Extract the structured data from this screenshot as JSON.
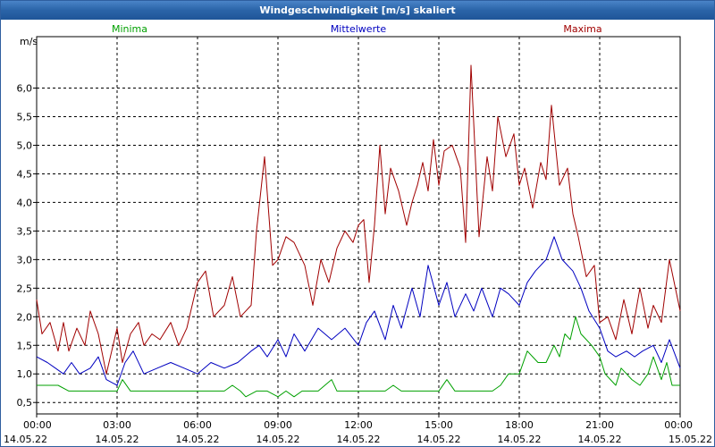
{
  "title": "Windgeschwindigkeit [m/s] skaliert",
  "chart_data": {
    "type": "line",
    "title": "Windgeschwindigkeit [m/s] skaliert",
    "ylabel": "m/s",
    "ylim": [
      0.3,
      6.9
    ],
    "yticks": [
      0.5,
      1.0,
      1.5,
      2.0,
      2.5,
      3.0,
      3.5,
      4.0,
      4.5,
      5.0,
      5.5,
      6.0
    ],
    "ytick_labels": [
      "0,5",
      "1,0",
      "1,5",
      "2,0",
      "2,5",
      "3,0",
      "3,5",
      "4,0",
      "4,5",
      "5,0",
      "5,5",
      "6,0"
    ],
    "xlim_hours": [
      0,
      24
    ],
    "xticks": [
      {
        "h": 0,
        "time": "00:00",
        "date": "14.05.22"
      },
      {
        "h": 3,
        "time": "03:00",
        "date": "14.05.22"
      },
      {
        "h": 6,
        "time": "06:00",
        "date": "14.05.22"
      },
      {
        "h": 9,
        "time": "09:00",
        "date": "14.05.22"
      },
      {
        "h": 12,
        "time": "12:00",
        "date": "14.05.22"
      },
      {
        "h": 15,
        "time": "15:00",
        "date": "14.05.22"
      },
      {
        "h": 18,
        "time": "18:00",
        "date": "14.05.22"
      },
      {
        "h": 21,
        "time": "21:00",
        "date": "14.05.22"
      },
      {
        "h": 24,
        "time": "00:00",
        "date": "15.05.22"
      }
    ],
    "grid": true,
    "series": [
      {
        "name": "Minima",
        "color": "#00a000",
        "x": [
          0,
          0.8,
          1.2,
          1.5,
          2,
          2.5,
          3,
          3.2,
          3.5,
          4,
          5,
          6,
          7,
          7.3,
          7.6,
          7.8,
          8.2,
          8.6,
          9,
          9.3,
          9.6,
          9.9,
          10.2,
          10.5,
          11,
          11.2,
          11.5,
          12,
          12.5,
          13,
          13.3,
          13.6,
          14,
          14.5,
          15,
          15.3,
          15.6,
          16,
          16.5,
          17,
          17.3,
          17.6,
          18,
          18.3,
          18.5,
          18.7,
          19,
          19.3,
          19.5,
          19.7,
          19.9,
          20.1,
          20.3,
          20.5,
          20.7,
          21,
          21.2,
          21.4,
          21.6,
          21.8,
          22,
          22.2,
          22.5,
          22.8,
          23,
          23.3,
          23.5,
          23.7,
          24
        ],
        "values": [
          0.8,
          0.8,
          0.7,
          0.7,
          0.7,
          0.7,
          0.7,
          0.9,
          0.7,
          0.7,
          0.7,
          0.7,
          0.7,
          0.8,
          0.7,
          0.6,
          0.7,
          0.7,
          0.6,
          0.7,
          0.6,
          0.7,
          0.7,
          0.7,
          0.9,
          0.7,
          0.7,
          0.7,
          0.7,
          0.7,
          0.8,
          0.7,
          0.7,
          0.7,
          0.7,
          0.9,
          0.7,
          0.7,
          0.7,
          0.7,
          0.8,
          1.0,
          1.0,
          1.4,
          1.3,
          1.2,
          1.2,
          1.5,
          1.3,
          1.7,
          1.6,
          2.0,
          1.7,
          1.6,
          1.5,
          1.3,
          1.0,
          0.9,
          0.8,
          1.1,
          1.0,
          0.9,
          0.8,
          1.0,
          1.3,
          0.9,
          1.2,
          0.8,
          0.8
        ]
      },
      {
        "name": "Mittelwerte",
        "color": "#0000c0",
        "x": [
          0,
          0.4,
          0.7,
          1,
          1.3,
          1.6,
          2,
          2.3,
          2.6,
          3,
          3.3,
          3.6,
          4,
          4.5,
          5,
          5.5,
          6,
          6.5,
          7,
          7.5,
          8,
          8.3,
          8.6,
          9,
          9.3,
          9.6,
          10,
          10.5,
          11,
          11.5,
          12,
          12.3,
          12.6,
          13,
          13.3,
          13.6,
          14,
          14.3,
          14.6,
          15,
          15.3,
          15.6,
          16,
          16.3,
          16.6,
          17,
          17.3,
          17.6,
          18,
          18.3,
          18.6,
          19,
          19.3,
          19.6,
          20,
          20.3,
          20.6,
          21,
          21.3,
          21.6,
          22,
          22.3,
          22.6,
          23,
          23.3,
          23.6,
          24
        ],
        "values": [
          1.3,
          1.2,
          1.1,
          1.0,
          1.2,
          1.0,
          1.1,
          1.3,
          0.9,
          0.8,
          1.2,
          1.4,
          1.0,
          1.1,
          1.2,
          1.1,
          1.0,
          1.2,
          1.1,
          1.2,
          1.4,
          1.5,
          1.3,
          1.6,
          1.3,
          1.7,
          1.4,
          1.8,
          1.6,
          1.8,
          1.5,
          1.9,
          2.1,
          1.6,
          2.2,
          1.8,
          2.5,
          2.0,
          2.9,
          2.2,
          2.6,
          2.0,
          2.4,
          2.1,
          2.5,
          2.0,
          2.5,
          2.4,
          2.2,
          2.6,
          2.8,
          3.0,
          3.4,
          3.0,
          2.8,
          2.5,
          2.1,
          1.8,
          1.4,
          1.3,
          1.4,
          1.3,
          1.4,
          1.5,
          1.2,
          1.6,
          1.1
        ]
      },
      {
        "name": "Maxima",
        "color": "#a00000",
        "x": [
          0,
          0.2,
          0.5,
          0.8,
          1,
          1.2,
          1.5,
          1.8,
          2,
          2.3,
          2.6,
          3,
          3.2,
          3.5,
          3.8,
          4,
          4.3,
          4.6,
          5,
          5.3,
          5.6,
          6,
          6.3,
          6.6,
          7,
          7.3,
          7.6,
          8,
          8.2,
          8.5,
          8.8,
          9,
          9.3,
          9.6,
          10,
          10.3,
          10.6,
          10.9,
          11.2,
          11.5,
          11.8,
          12,
          12.2,
          12.4,
          12.6,
          12.8,
          13,
          13.2,
          13.5,
          13.8,
          14,
          14.2,
          14.4,
          14.6,
          14.8,
          15,
          15.2,
          15.5,
          15.8,
          16,
          16.2,
          16.5,
          16.8,
          17,
          17.2,
          17.5,
          17.8,
          18,
          18.2,
          18.5,
          18.8,
          19,
          19.2,
          19.5,
          19.8,
          20,
          20.2,
          20.5,
          20.8,
          21,
          21.3,
          21.6,
          21.9,
          22.2,
          22.5,
          22.8,
          23,
          23.3,
          23.6,
          24
        ],
        "values": [
          2.3,
          1.7,
          1.9,
          1.4,
          1.9,
          1.4,
          1.8,
          1.5,
          2.1,
          1.7,
          1.0,
          1.8,
          1.2,
          1.7,
          1.9,
          1.5,
          1.7,
          1.6,
          1.9,
          1.5,
          1.8,
          2.6,
          2.8,
          2.0,
          2.2,
          2.7,
          2.0,
          2.2,
          3.5,
          4.8,
          2.9,
          3.0,
          3.4,
          3.3,
          2.9,
          2.2,
          3.0,
          2.6,
          3.2,
          3.5,
          3.3,
          3.6,
          3.7,
          2.6,
          3.6,
          5.0,
          3.8,
          4.6,
          4.2,
          3.6,
          4.0,
          4.3,
          4.7,
          4.2,
          5.1,
          4.3,
          4.9,
          5.0,
          4.6,
          3.3,
          6.4,
          3.4,
          4.8,
          4.2,
          5.5,
          4.8,
          5.2,
          4.3,
          4.6,
          3.9,
          4.7,
          4.4,
          5.7,
          4.3,
          4.6,
          3.8,
          3.4,
          2.7,
          2.9,
          1.9,
          2.0,
          1.6,
          2.3,
          1.7,
          2.5,
          1.8,
          2.2,
          1.9,
          3.0,
          2.1
        ]
      }
    ]
  }
}
